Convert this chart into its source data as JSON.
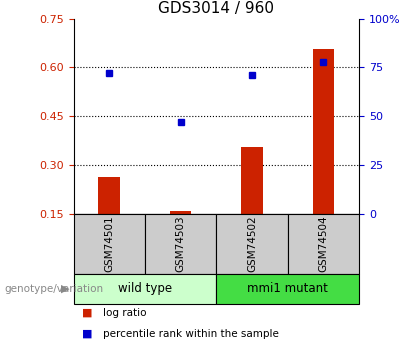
{
  "title": "GDS3014 / 960",
  "samples": [
    "GSM74501",
    "GSM74503",
    "GSM74502",
    "GSM74504"
  ],
  "log_ratio": [
    0.262,
    0.158,
    0.355,
    0.655
  ],
  "percentile_rank": [
    72,
    47,
    71,
    78
  ],
  "ylim_left": [
    0.15,
    0.75
  ],
  "ylim_right": [
    0,
    100
  ],
  "yticks_left": [
    0.15,
    0.3,
    0.45,
    0.6,
    0.75
  ],
  "ytick_labels_left": [
    "0.15",
    "0.30",
    "0.45",
    "0.60",
    "0.75"
  ],
  "yticks_right": [
    0,
    25,
    50,
    75,
    100
  ],
  "ytick_labels_right": [
    "0",
    "25",
    "50",
    "75",
    "100%"
  ],
  "grid_lines": [
    0.3,
    0.45,
    0.6
  ],
  "bar_color": "#cc2200",
  "dot_color": "#0000cc",
  "groups": [
    {
      "label": "wild type",
      "indices": [
        0,
        1
      ],
      "color": "#ccffcc"
    },
    {
      "label": "mmi1 mutant",
      "indices": [
        2,
        3
      ],
      "color": "#44dd44"
    }
  ],
  "sample_box_color": "#cccccc",
  "plot_bg_color": "#ffffff",
  "bottom_label": "genotype/variation",
  "legend_log_ratio": "log ratio",
  "legend_percentile": "percentile rank within the sample",
  "bar_width": 0.3
}
